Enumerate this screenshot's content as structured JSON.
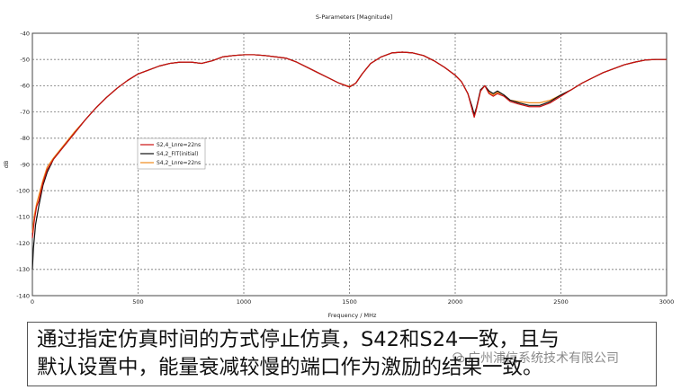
{
  "chart_data": {
    "type": "line",
    "title": "S-Parameters [Magnitude]",
    "xlabel": "Frequency / MHz",
    "ylabel": "dB",
    "xlim": [
      0,
      3000
    ],
    "ylim": [
      -140,
      -40
    ],
    "xticks": [
      0,
      500,
      1000,
      1500,
      2000,
      2500,
      3000
    ],
    "yticks": [
      -40,
      -50,
      -60,
      -70,
      -80,
      -90,
      -100,
      -110,
      -120,
      -130,
      -140
    ],
    "grid": true,
    "legend_position": "left-middle",
    "series": [
      {
        "name": "S2,4_Lnre=22ns",
        "color": "#cc1010",
        "x": [
          0,
          10,
          20,
          30,
          50,
          70,
          100,
          150,
          200,
          250,
          300,
          350,
          400,
          450,
          500,
          550,
          600,
          650,
          700,
          750,
          800,
          850,
          900,
          950,
          1000,
          1050,
          1100,
          1150,
          1200,
          1250,
          1300,
          1350,
          1400,
          1450,
          1500,
          1530,
          1560,
          1600,
          1650,
          1700,
          1750,
          1800,
          1850,
          1900,
          1950,
          2000,
          2030,
          2060,
          2080,
          2090,
          2100,
          2120,
          2140,
          2160,
          2180,
          2200,
          2230,
          2260,
          2300,
          2350,
          2400,
          2450,
          2500,
          2550,
          2600,
          2650,
          2700,
          2750,
          2800,
          2850,
          2900,
          2950,
          3000
        ],
        "values": [
          -118,
          -111,
          -106,
          -104,
          -97,
          -92,
          -88,
          -83,
          -78,
          -73,
          -68.5,
          -64.5,
          -61,
          -58,
          -55.5,
          -54,
          -52.5,
          -51.5,
          -51,
          -51,
          -51.5,
          -50.5,
          -49,
          -48.5,
          -48.2,
          -48.2,
          -48.5,
          -49,
          -49.5,
          -51,
          -53,
          -55,
          -57,
          -59,
          -60.5,
          -59,
          -55.5,
          -51.5,
          -49,
          -47.5,
          -47.2,
          -47.5,
          -48.5,
          -50.5,
          -53,
          -56,
          -58.5,
          -63,
          -69,
          -72,
          -69,
          -62,
          -60,
          -63,
          -64,
          -63,
          -64,
          -66,
          -67,
          -68,
          -68,
          -66.5,
          -64,
          -61.5,
          -59,
          -57,
          -55,
          -53.5,
          -52,
          -51,
          -50.2,
          -50,
          -50
        ]
      },
      {
        "name": "S4,2_FIT(initial)",
        "color": "#111111",
        "x": [
          0,
          5,
          15,
          30,
          50,
          70,
          100,
          150,
          200,
          250,
          300,
          350,
          400,
          450,
          500,
          550,
          600,
          650,
          700,
          750,
          800,
          850,
          900,
          950,
          1000,
          1050,
          1100,
          1150,
          1200,
          1250,
          1300,
          1350,
          1400,
          1450,
          1500,
          1530,
          1560,
          1600,
          1650,
          1700,
          1750,
          1800,
          1850,
          1900,
          1950,
          2000,
          2030,
          2060,
          2080,
          2090,
          2100,
          2120,
          2140,
          2160,
          2180,
          2200,
          2230,
          2260,
          2300,
          2350,
          2400,
          2450,
          2500,
          2550,
          2600,
          2650,
          2700,
          2750,
          2800,
          2850,
          2900,
          2950,
          3000
        ],
        "values": [
          -130,
          -122,
          -113,
          -106,
          -98,
          -93,
          -88,
          -83,
          -78,
          -73,
          -68.5,
          -64.5,
          -61,
          -58,
          -55.5,
          -54,
          -52.5,
          -51.5,
          -51,
          -51,
          -51.5,
          -50.5,
          -49,
          -48.5,
          -48.2,
          -48.2,
          -48.5,
          -49,
          -49.5,
          -51,
          -53,
          -55,
          -57,
          -59,
          -60.5,
          -59,
          -55.5,
          -51.5,
          -49,
          -47.5,
          -47.2,
          -47.5,
          -48.5,
          -50.5,
          -53,
          -56,
          -58.5,
          -63,
          -68,
          -71,
          -68.5,
          -61.5,
          -60,
          -62,
          -63,
          -62,
          -63.5,
          -65.5,
          -66.5,
          -67.5,
          -67.5,
          -66,
          -63.5,
          -61.5,
          -59,
          -57,
          -55,
          -53.5,
          -52,
          -51,
          -50.2,
          -50,
          -50
        ]
      },
      {
        "name": "S4,2_Lnre=22ns",
        "color": "#f08a1a",
        "x": [
          0,
          10,
          20,
          30,
          50,
          70,
          100,
          150,
          200,
          250,
          300,
          350,
          400,
          450,
          500,
          550,
          600,
          650,
          700,
          750,
          800,
          850,
          900,
          950,
          1000,
          1050,
          1100,
          1150,
          1200,
          1250,
          1300,
          1350,
          1400,
          1450,
          1500,
          1530,
          1560,
          1600,
          1650,
          1700,
          1750,
          1800,
          1850,
          1900,
          1950,
          2000,
          2030,
          2060,
          2080,
          2090,
          2100,
          2120,
          2140,
          2160,
          2180,
          2200,
          2230,
          2260,
          2300,
          2350,
          2400,
          2450,
          2500,
          2550,
          2600,
          2650,
          2700,
          2750,
          2800,
          2850,
          2900,
          2950,
          3000
        ],
        "values": [
          -116,
          -109,
          -105,
          -102,
          -96,
          -91,
          -87.5,
          -82.5,
          -77.5,
          -73,
          -68.5,
          -64.5,
          -61,
          -58,
          -55.5,
          -54,
          -52.5,
          -51.5,
          -51,
          -51,
          -51.5,
          -50.5,
          -49,
          -48.5,
          -48.2,
          -48.2,
          -48.5,
          -49,
          -49.5,
          -51,
          -53,
          -55,
          -57,
          -59,
          -60.3,
          -59,
          -55.5,
          -51.5,
          -49,
          -47.5,
          -47.2,
          -47.5,
          -48.5,
          -50.5,
          -53,
          -56,
          -58.5,
          -63,
          -68.5,
          -71.5,
          -69,
          -62,
          -60,
          -62.5,
          -63.5,
          -62.5,
          -63.5,
          -65.5,
          -66,
          -66.5,
          -66.5,
          -65.5,
          -63.5,
          -61.5,
          -59,
          -57,
          -55,
          -53.5,
          -52,
          -51,
          -50.2,
          -50,
          -50
        ]
      }
    ]
  },
  "caption": {
    "line1": "通过指定仿真时间的方式停止仿真，S42和S24一致，且与",
    "line2": "默认设置中，能量衰减较慢的端口作为激励的结果一致。"
  },
  "watermark": {
    "text": "广州浦信系统技术有限公司",
    "icon": "wechat-icon"
  }
}
